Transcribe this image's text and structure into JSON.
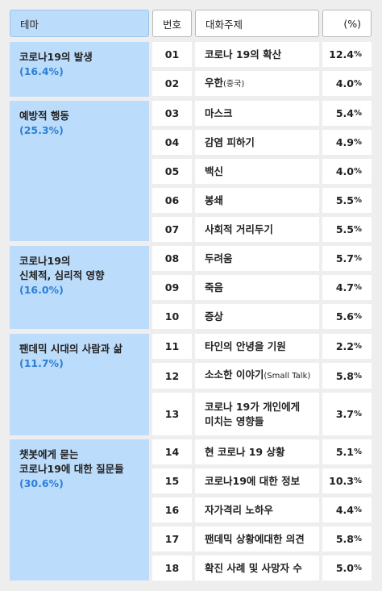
{
  "headers": {
    "theme": "테마",
    "number": "번호",
    "topic": "대화주제",
    "percent": "(%)"
  },
  "themes": [
    {
      "name": "코로나19의 발생",
      "pct": "(16.4%)"
    },
    {
      "name": "예방적 행동",
      "pct": "(25.3%)"
    },
    {
      "name": "코로나19의\n신체적, 심리적 영향",
      "pct": "(16.0%)"
    },
    {
      "name": "팬데믹 시대의 사람과 삶",
      "pct": "(11.7%)"
    },
    {
      "name": "챗봇에게 묻는\n코로나19에 대한 질문들",
      "pct": "(30.6%)"
    }
  ],
  "rows": [
    {
      "num": "01",
      "topic": "코로나 19의 확산",
      "pct": "12.4",
      "unit": "%"
    },
    {
      "num": "02",
      "topic": "우한",
      "topic_small": "(중국)",
      "pct": "4.0",
      "unit": "%"
    },
    {
      "num": "03",
      "topic": "마스크",
      "pct": "5.4",
      "unit": "%"
    },
    {
      "num": "04",
      "topic": "감염 피하기",
      "pct": "4.9",
      "unit": "%"
    },
    {
      "num": "05",
      "topic": "백신",
      "pct": "4.0",
      "unit": "%"
    },
    {
      "num": "06",
      "topic": "봉쇄",
      "pct": "5.5",
      "unit": "%"
    },
    {
      "num": "07",
      "topic": "사회적 거리두기",
      "pct": "5.5",
      "unit": "%"
    },
    {
      "num": "08",
      "topic": "두려움",
      "pct": "5.7",
      "unit": "%"
    },
    {
      "num": "09",
      "topic": "죽음",
      "pct": "4.7",
      "unit": "%"
    },
    {
      "num": "10",
      "topic": "증상",
      "pct": "5.6",
      "unit": "%"
    },
    {
      "num": "11",
      "topic": "타인의 안녕을 기원",
      "pct": "2.2",
      "unit": "%"
    },
    {
      "num": "12",
      "topic": "소소한 이야기",
      "topic_small": "(Small Talk)",
      "pct": "5.8",
      "unit": "%"
    },
    {
      "num": "13",
      "topic": "코로나 19가 개인에게\n미치는 영향들",
      "pct": "3.7",
      "unit": "%"
    },
    {
      "num": "14",
      "topic": "현 코로나 19 상황",
      "pct": "5.1",
      "unit": "%"
    },
    {
      "num": "15",
      "topic": "코로나19에 대한 정보",
      "pct": "10.3",
      "unit": "%"
    },
    {
      "num": "16",
      "topic": "자가격리 노하우",
      "pct": "4.4",
      "unit": "%"
    },
    {
      "num": "17",
      "topic": "팬데믹 상황에대한 의견",
      "pct": "5.8",
      "unit": "%"
    },
    {
      "num": "18",
      "topic": "확진 사례 및 사망자 수",
      "pct": "5.0",
      "unit": "%"
    }
  ],
  "colors": {
    "theme_bg": "#bcdcfb",
    "theme_pct": "#2b7fd6",
    "page_bg": "#eeeeee"
  }
}
